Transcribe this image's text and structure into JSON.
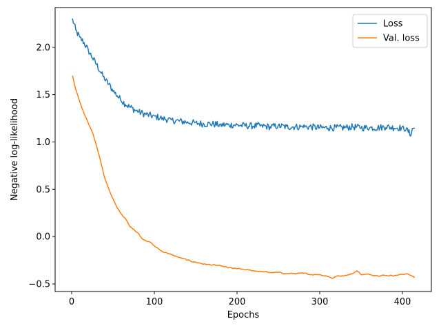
{
  "chart_data": {
    "type": "line",
    "title": "",
    "xlabel": "Epochs",
    "ylabel": "Negative log-likelihood",
    "xlim": [
      -20,
      435
    ],
    "ylim": [
      -0.58,
      2.42
    ],
    "xticks": [
      0,
      100,
      200,
      300,
      400
    ],
    "yticks": [
      -0.5,
      0.0,
      0.5,
      1.0,
      1.5,
      2.0
    ],
    "ytick_labels": [
      "−0.5",
      "0.0",
      "0.5",
      "1.0",
      "1.5",
      "2.0"
    ],
    "grid": false,
    "legend_position": "top-right",
    "series": [
      {
        "name": "Loss",
        "color": "#1f77b4",
        "x": [
          1,
          5,
          10,
          15,
          20,
          25,
          30,
          35,
          40,
          45,
          50,
          55,
          60,
          65,
          70,
          80,
          90,
          100,
          110,
          120,
          130,
          140,
          150,
          160,
          170,
          180,
          190,
          200,
          210,
          220,
          230,
          240,
          250,
          260,
          270,
          280,
          290,
          300,
          310,
          320,
          330,
          340,
          350,
          360,
          370,
          380,
          390,
          400,
          405,
          410,
          412,
          415
        ],
        "values": [
          2.3,
          2.18,
          2.1,
          2.05,
          1.97,
          1.89,
          1.82,
          1.74,
          1.66,
          1.61,
          1.54,
          1.49,
          1.44,
          1.4,
          1.37,
          1.32,
          1.29,
          1.27,
          1.25,
          1.23,
          1.22,
          1.21,
          1.2,
          1.19,
          1.19,
          1.18,
          1.18,
          1.18,
          1.17,
          1.17,
          1.17,
          1.16,
          1.17,
          1.16,
          1.16,
          1.16,
          1.16,
          1.15,
          1.15,
          1.15,
          1.15,
          1.16,
          1.15,
          1.15,
          1.15,
          1.16,
          1.15,
          1.15,
          1.14,
          1.07,
          1.14,
          1.15
        ],
        "noise": 0.035
      },
      {
        "name": "Val. loss",
        "color": "#ff7f0e",
        "x": [
          1,
          5,
          10,
          15,
          20,
          25,
          30,
          35,
          40,
          45,
          50,
          55,
          60,
          65,
          70,
          75,
          80,
          85,
          90,
          95,
          100,
          105,
          110,
          115,
          120,
          130,
          140,
          150,
          160,
          170,
          180,
          190,
          200,
          210,
          220,
          230,
          240,
          250,
          260,
          270,
          280,
          290,
          300,
          310,
          315,
          320,
          330,
          340,
          345,
          350,
          360,
          370,
          380,
          390,
          400,
          405,
          410,
          415
        ],
        "values": [
          1.7,
          1.55,
          1.42,
          1.3,
          1.2,
          1.1,
          0.96,
          0.8,
          0.62,
          0.5,
          0.4,
          0.3,
          0.24,
          0.19,
          0.11,
          0.08,
          0.04,
          -0.02,
          -0.04,
          -0.06,
          -0.1,
          -0.13,
          -0.16,
          -0.17,
          -0.19,
          -0.22,
          -0.25,
          -0.27,
          -0.29,
          -0.3,
          -0.31,
          -0.33,
          -0.34,
          -0.35,
          -0.36,
          -0.37,
          -0.38,
          -0.38,
          -0.39,
          -0.39,
          -0.39,
          -0.4,
          -0.4,
          -0.42,
          -0.44,
          -0.42,
          -0.41,
          -0.39,
          -0.36,
          -0.4,
          -0.4,
          -0.41,
          -0.41,
          -0.41,
          -0.4,
          -0.39,
          -0.41,
          -0.43
        ],
        "noise": 0.012
      }
    ]
  }
}
